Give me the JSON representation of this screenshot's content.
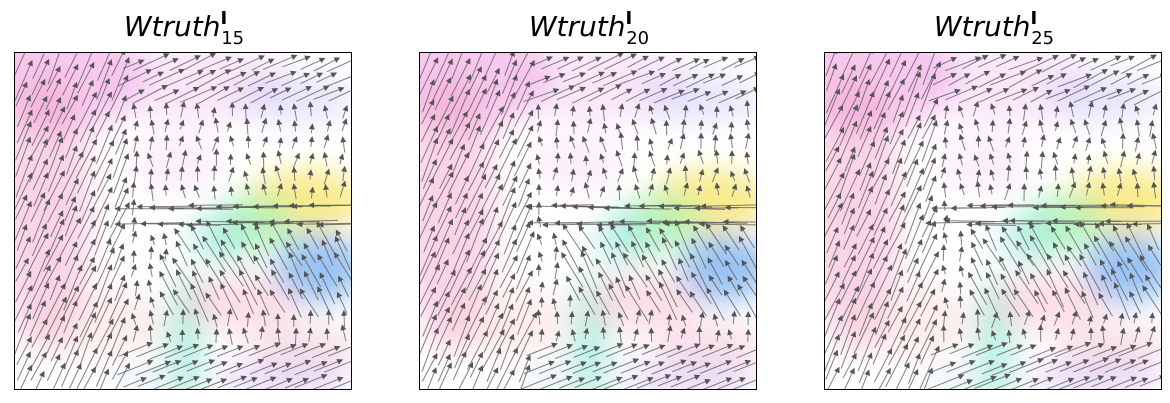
{
  "panels": [
    {
      "title_main": "Wtruth",
      "title_sup": "I",
      "title_sub": "15"
    },
    {
      "title_main": "Wtruth",
      "title_sup": "I",
      "title_sub": "20"
    },
    {
      "title_main": "Wtruth",
      "title_sup": "I",
      "title_sub": "25"
    }
  ],
  "colors": {
    "arrow": "#555555",
    "frame": "#000000",
    "background": "#ffffff"
  }
}
